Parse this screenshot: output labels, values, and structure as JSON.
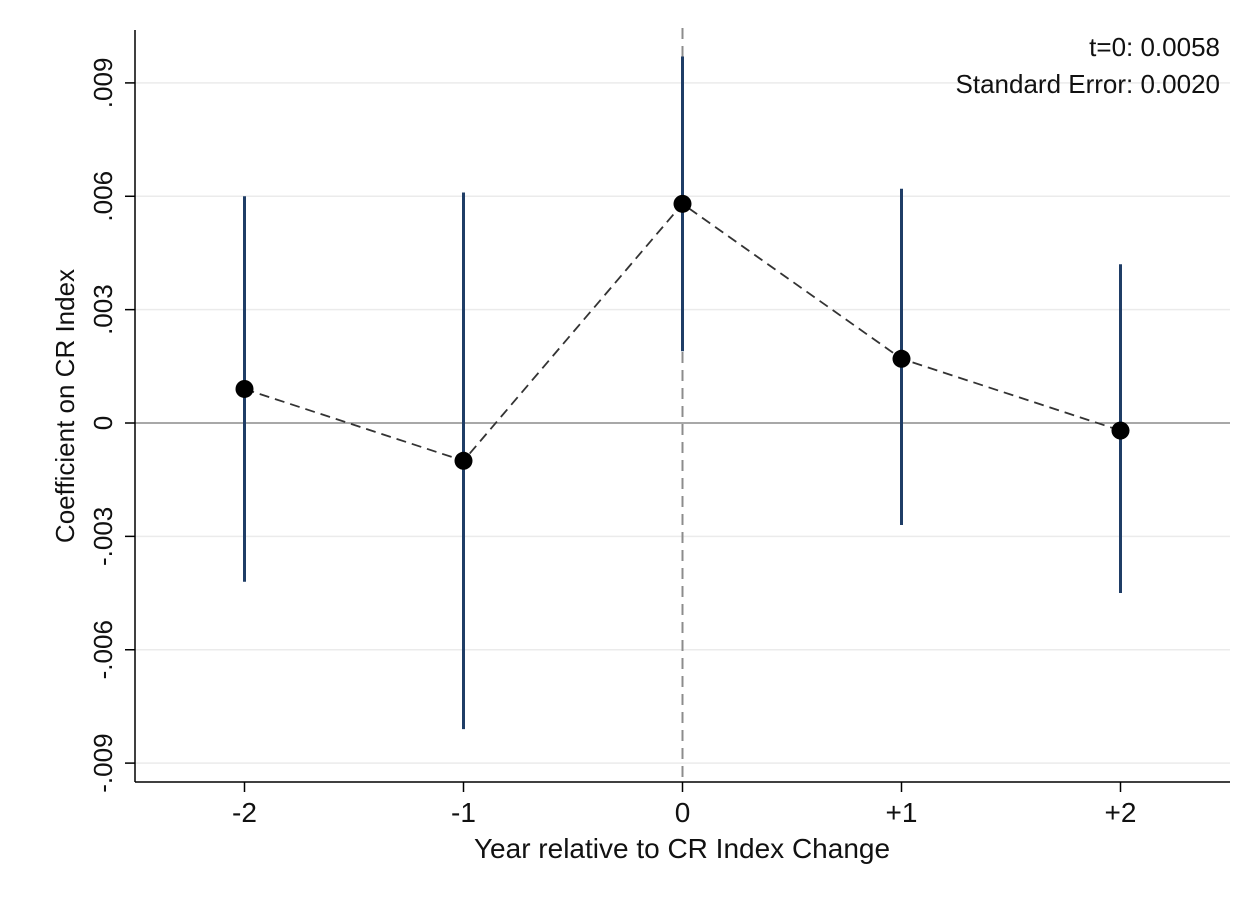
{
  "chart_data": {
    "type": "scatter",
    "x_categories": [
      "-2",
      "-1",
      "0",
      "+1",
      "+2"
    ],
    "x_values": [
      -2,
      -1,
      0,
      1,
      2
    ],
    "coefficients": [
      0.0009,
      -0.001,
      0.0058,
      0.0017,
      -0.0002
    ],
    "ci_lower": [
      -0.0042,
      -0.0081,
      0.0019,
      -0.0027,
      -0.0045
    ],
    "ci_upper": [
      0.006,
      0.0061,
      0.0097,
      0.0062,
      0.0042
    ],
    "xlabel": "Year relative to CR Index Change",
    "ylabel": "Coefficient on CR Index",
    "yticks": [
      -0.009,
      -0.006,
      -0.003,
      0,
      0.003,
      0.006,
      0.009
    ],
    "ytick_labels": [
      "-.009",
      "-.006",
      "-.003",
      "0",
      ".003",
      ".006",
      ".009"
    ],
    "ylim": [
      -0.0095,
      0.0104
    ],
    "xlim": [
      -2.5,
      2.5
    ],
    "grid": true,
    "reference_lines": {
      "horizontal_at": 0,
      "vertical_at": 0
    },
    "annotation": {
      "line1": "t=0: 0.0058",
      "line2": "Standard Error: 0.0020"
    },
    "colors": {
      "ci_bar": "#1f3d66",
      "marker": "#000000",
      "connector": "#333333",
      "grid": "#ebebeb",
      "ref_line": "#8c8c8c"
    }
  }
}
